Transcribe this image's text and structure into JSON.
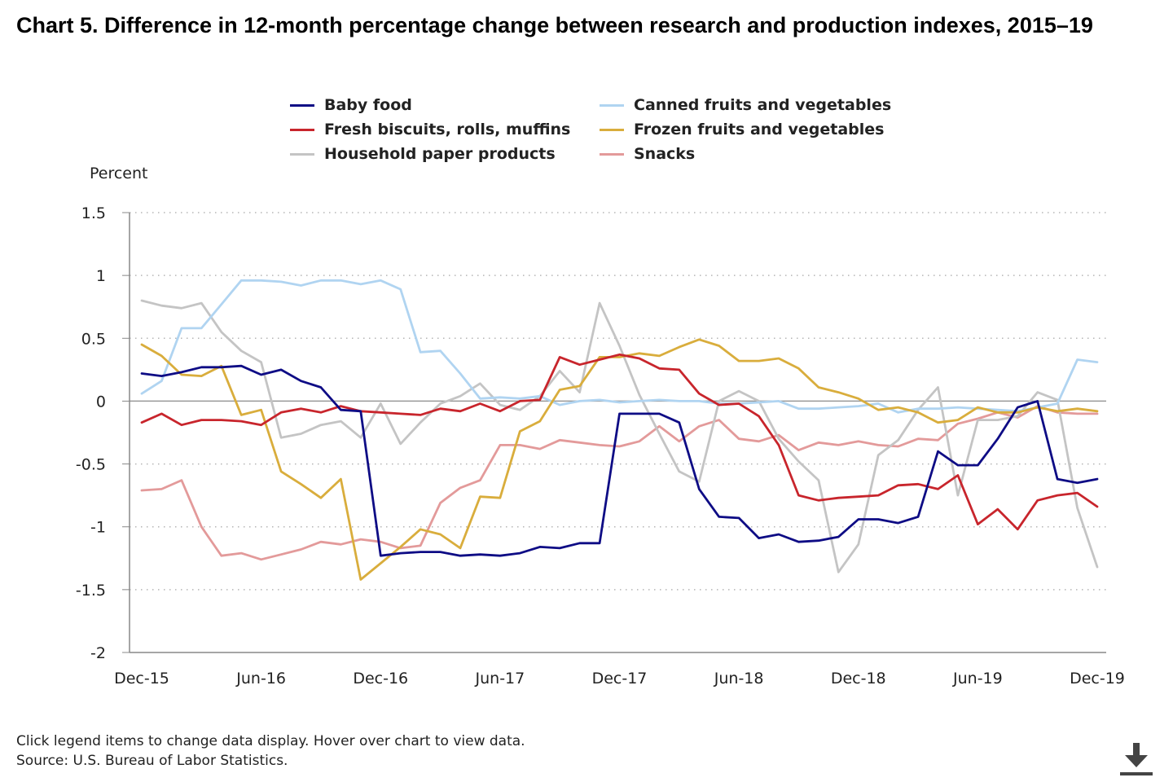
{
  "title": "Chart 5. Difference in 12-month percentage change between research and production indexes, 2015–19",
  "footer": {
    "note": "Click legend items to change data display. Hover over chart to view data.",
    "source": "Source: U.S. Bureau of Labor Statistics."
  },
  "download_icon": "download-icon",
  "chart_data": {
    "type": "line",
    "ylabel": "Percent",
    "xlabel": "",
    "ylim": [
      -2,
      1.5
    ],
    "yticks": [
      1.5,
      1,
      0.5,
      0,
      -0.5,
      -1,
      -1.5,
      -2
    ],
    "ytick_labels": [
      "1.5",
      "1",
      "0.5",
      "0",
      "-0.5",
      "-1",
      "-1.5",
      "-2"
    ],
    "x_ticks": [
      {
        "index": 0,
        "label": "Dec-15"
      },
      {
        "index": 6,
        "label": "Jun-16"
      },
      {
        "index": 12,
        "label": "Dec-16"
      },
      {
        "index": 18,
        "label": "Jun-17"
      },
      {
        "index": 24,
        "label": "Dec-17"
      },
      {
        "index": 30,
        "label": "Jun-18"
      },
      {
        "index": 36,
        "label": "Dec-18"
      },
      {
        "index": 42,
        "label": "Jun-19"
      },
      {
        "index": 48,
        "label": "Dec-19"
      }
    ],
    "grid": "horizontal-dotted",
    "legend_position": "top",
    "x": [
      "Dec-15",
      "Jan-16",
      "Feb-16",
      "Mar-16",
      "Apr-16",
      "May-16",
      "Jun-16",
      "Jul-16",
      "Aug-16",
      "Sep-16",
      "Oct-16",
      "Nov-16",
      "Dec-16",
      "Jan-17",
      "Feb-17",
      "Mar-17",
      "Apr-17",
      "May-17",
      "Jun-17",
      "Jul-17",
      "Aug-17",
      "Sep-17",
      "Oct-17",
      "Nov-17",
      "Dec-17",
      "Jan-18",
      "Feb-18",
      "Mar-18",
      "Apr-18",
      "May-18",
      "Jun-18",
      "Jul-18",
      "Aug-18",
      "Sep-18",
      "Oct-18",
      "Nov-18",
      "Dec-18",
      "Jan-19",
      "Feb-19",
      "Mar-19",
      "Apr-19",
      "May-19",
      "Jun-19",
      "Jul-19",
      "Aug-19",
      "Sep-19",
      "Oct-19",
      "Nov-19",
      "Dec-19"
    ],
    "series": [
      {
        "name": "Baby food",
        "color": "#0e0c85",
        "values": [
          0.22,
          0.2,
          0.23,
          0.27,
          0.27,
          0.28,
          0.21,
          0.25,
          0.16,
          0.11,
          -0.07,
          -0.08,
          -1.23,
          -1.21,
          -1.2,
          -1.2,
          -1.23,
          -1.22,
          -1.23,
          -1.21,
          -1.16,
          -1.17,
          -1.13,
          -1.13,
          -0.1,
          -0.1,
          -0.1,
          -0.17,
          -0.7,
          -0.92,
          -0.93,
          -1.09,
          -1.06,
          -1.12,
          -1.11,
          -1.08,
          -0.94,
          -0.94,
          -0.97,
          -0.92,
          -0.4,
          -0.51,
          -0.51,
          -0.3,
          -0.05,
          0.0,
          -0.62,
          -0.65,
          -0.62
        ]
      },
      {
        "name": "Canned fruits and vegetables",
        "color": "#b0d4f1",
        "values": [
          0.06,
          0.16,
          0.58,
          0.58,
          0.77,
          0.96,
          0.96,
          0.95,
          0.92,
          0.96,
          0.96,
          0.93,
          0.96,
          0.89,
          0.39,
          0.4,
          0.22,
          0.02,
          0.03,
          0.02,
          0.04,
          -0.03,
          0.0,
          0.01,
          -0.01,
          0.0,
          0.01,
          0.0,
          0.0,
          -0.02,
          -0.02,
          -0.01,
          0.0,
          -0.06,
          -0.06,
          -0.05,
          -0.04,
          -0.02,
          -0.09,
          -0.06,
          -0.06,
          -0.05,
          -0.06,
          -0.07,
          -0.08,
          -0.05,
          -0.02,
          0.33,
          0.31
        ]
      },
      {
        "name": "Fresh biscuits, rolls, muffins",
        "color": "#c8252c",
        "values": [
          -0.17,
          -0.1,
          -0.19,
          -0.15,
          -0.15,
          -0.16,
          -0.19,
          -0.09,
          -0.06,
          -0.09,
          -0.04,
          -0.08,
          -0.09,
          -0.1,
          -0.11,
          -0.06,
          -0.08,
          -0.02,
          -0.08,
          0.0,
          0.01,
          0.35,
          0.29,
          0.33,
          0.37,
          0.34,
          0.26,
          0.25,
          0.06,
          -0.03,
          -0.02,
          -0.12,
          -0.35,
          -0.75,
          -0.79,
          -0.77,
          -0.76,
          -0.75,
          -0.67,
          -0.66,
          -0.7,
          -0.59,
          -0.98,
          -0.86,
          -1.02,
          -0.79,
          -0.75,
          -0.73,
          -0.84
        ]
      },
      {
        "name": "Frozen fruits and vegetables",
        "color": "#d9ad3c",
        "values": [
          0.45,
          0.36,
          0.21,
          0.2,
          0.28,
          -0.11,
          -0.07,
          -0.56,
          -0.66,
          -0.77,
          -0.62,
          -1.42,
          -1.29,
          -1.16,
          -1.02,
          -1.06,
          -1.17,
          -0.76,
          -0.77,
          -0.24,
          -0.16,
          0.09,
          0.12,
          0.35,
          0.35,
          0.38,
          0.36,
          0.43,
          0.49,
          0.44,
          0.32,
          0.32,
          0.34,
          0.26,
          0.11,
          0.07,
          0.02,
          -0.07,
          -0.05,
          -0.09,
          -0.17,
          -0.15,
          -0.05,
          -0.09,
          -0.09,
          -0.05,
          -0.08,
          -0.06,
          -0.08
        ]
      },
      {
        "name": "Household paper products",
        "color": "#c4c4c4",
        "values": [
          0.8,
          0.76,
          0.74,
          0.78,
          0.55,
          0.4,
          0.31,
          -0.29,
          -0.26,
          -0.19,
          -0.16,
          -0.29,
          -0.02,
          -0.34,
          -0.17,
          -0.02,
          0.04,
          0.14,
          -0.03,
          -0.07,
          0.04,
          0.24,
          0.07,
          0.78,
          0.44,
          0.05,
          -0.26,
          -0.56,
          -0.64,
          0.0,
          0.08,
          0.0,
          -0.3,
          -0.48,
          -0.63,
          -1.36,
          -1.14,
          -0.43,
          -0.31,
          -0.07,
          0.11,
          -0.75,
          -0.15,
          -0.15,
          -0.12,
          0.07,
          0.01,
          -0.85,
          -1.32
        ]
      },
      {
        "name": "Snacks",
        "color": "#e39a9a",
        "values": [
          -0.71,
          -0.7,
          -0.63,
          -1.0,
          -1.23,
          -1.21,
          -1.26,
          -1.22,
          -1.18,
          -1.12,
          -1.14,
          -1.1,
          -1.12,
          -1.17,
          -1.15,
          -0.81,
          -0.69,
          -0.63,
          -0.35,
          -0.35,
          -0.38,
          -0.31,
          -0.33,
          -0.35,
          -0.36,
          -0.32,
          -0.2,
          -0.32,
          -0.2,
          -0.15,
          -0.3,
          -0.32,
          -0.27,
          -0.39,
          -0.33,
          -0.35,
          -0.32,
          -0.35,
          -0.36,
          -0.3,
          -0.31,
          -0.18,
          -0.14,
          -0.09,
          -0.13,
          -0.04,
          -0.09,
          -0.1,
          -0.1
        ]
      }
    ]
  }
}
